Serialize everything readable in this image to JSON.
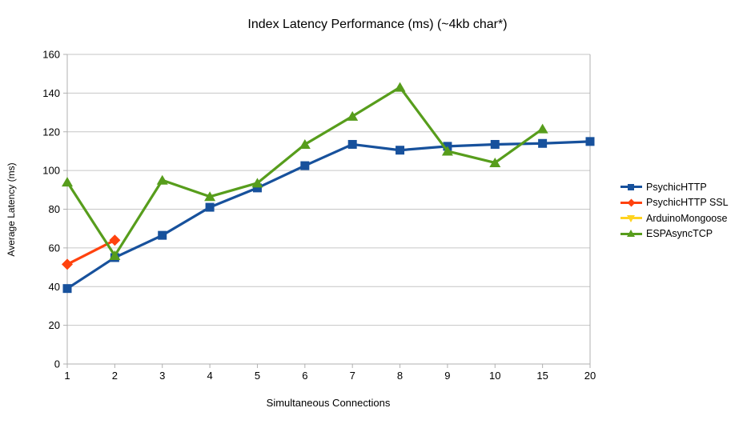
{
  "title": "Index Latency Performance (ms) (~4kb char*)",
  "chart_data": {
    "type": "line",
    "title": "Index Latency Performance (ms) (~4kb char*)",
    "xlabel": "Simultaneous Connections",
    "ylabel": "Average Latency (ms)",
    "categories": [
      "1",
      "2",
      "3",
      "4",
      "5",
      "6",
      "7",
      "8",
      "9",
      "10",
      "15",
      "20"
    ],
    "ylim": [
      0,
      160
    ],
    "yticks": [
      0,
      20,
      40,
      60,
      80,
      100,
      120,
      140,
      160
    ],
    "grid": "horizontal",
    "legend_position": "right",
    "series": [
      {
        "name": "PsychicHTTP",
        "color": "#17519c",
        "marker": "square",
        "values": [
          39,
          55,
          66.5,
          81,
          91,
          102.5,
          113.5,
          110.5,
          112.5,
          113.5,
          114,
          115
        ]
      },
      {
        "name": "PsychicHTTP SSL",
        "color": "#ff420e",
        "marker": "diamond",
        "values": [
          51.5,
          64,
          null,
          null,
          null,
          null,
          null,
          null,
          null,
          null,
          null,
          null
        ]
      },
      {
        "name": "ArduinoMongoose",
        "color": "#ffd320",
        "marker": "triangle-down",
        "values": [
          null,
          null,
          null,
          null,
          null,
          null,
          null,
          null,
          null,
          null,
          null,
          null
        ]
      },
      {
        "name": "ESPAsyncTCP",
        "color": "#579d1c",
        "marker": "triangle-up",
        "values": [
          94,
          56,
          95,
          86.5,
          93.5,
          113.5,
          128,
          143,
          110,
          104,
          121.5,
          null
        ]
      }
    ],
    "colors": {
      "grid": "#c6c6c6",
      "axis": "#b0b0b0",
      "background": "#ffffff",
      "text": "#000000"
    }
  }
}
